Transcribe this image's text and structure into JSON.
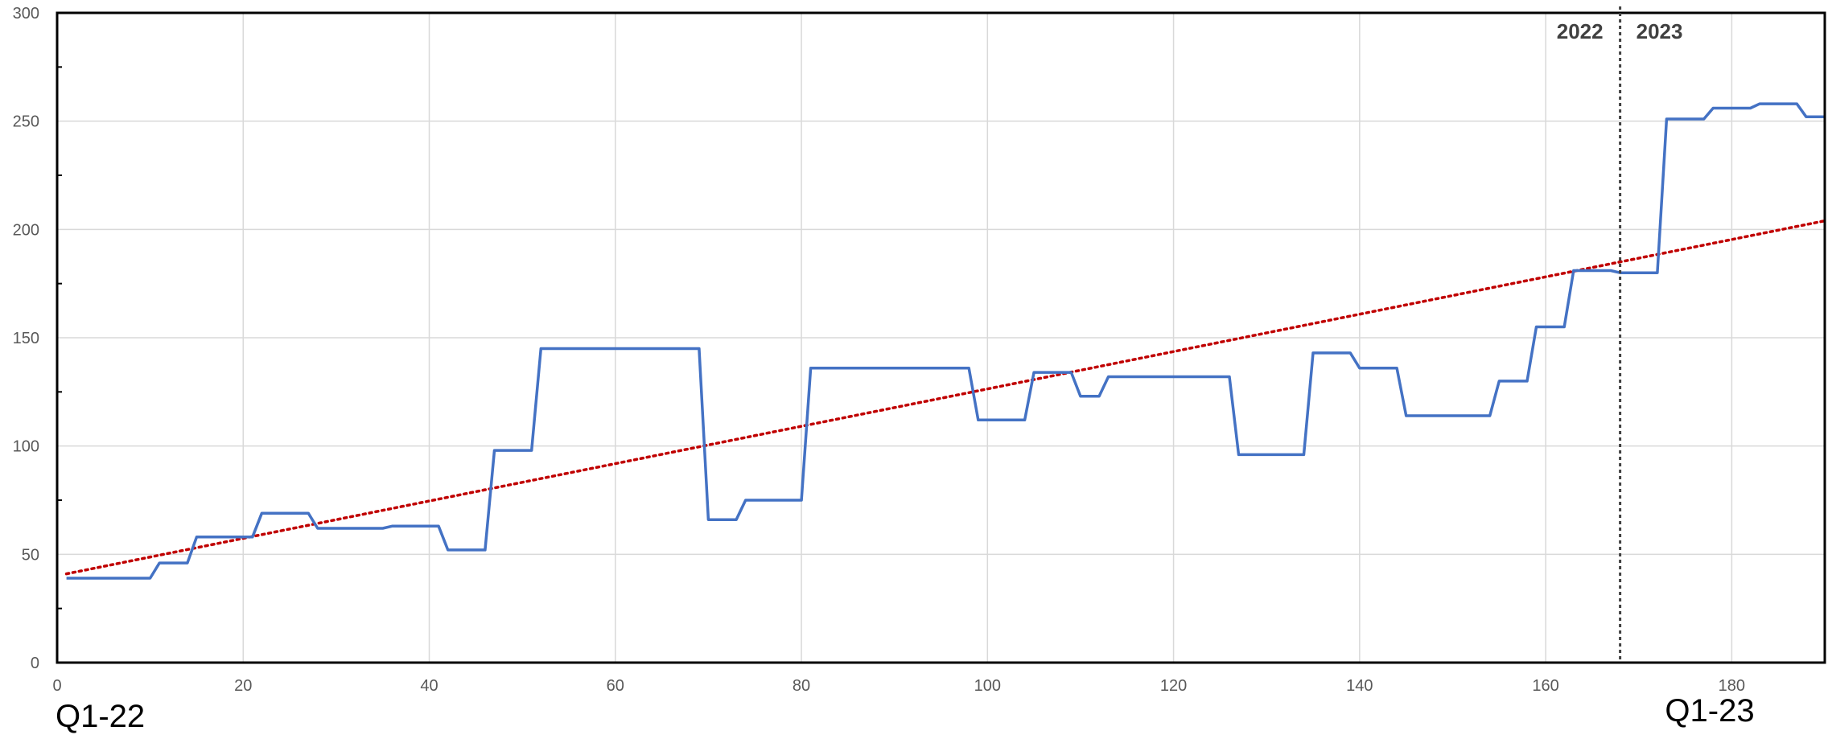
{
  "chart_data": {
    "type": "line",
    "title": "",
    "xlabel": "",
    "ylabel": "",
    "xlim": [
      0,
      190
    ],
    "ylim": [
      0,
      300
    ],
    "grid": true,
    "x_ticks": [
      0,
      20,
      40,
      60,
      80,
      100,
      120,
      140,
      160,
      180
    ],
    "y_ticks": [
      0,
      50,
      100,
      150,
      200,
      250,
      300
    ],
    "series": [
      {
        "color": "#4472C4",
        "style": "solid",
        "points": [
          [
            1,
            39
          ],
          [
            10,
            39
          ],
          [
            11,
            46
          ],
          [
            14,
            46
          ],
          [
            15,
            58
          ],
          [
            21,
            58
          ],
          [
            22,
            69
          ],
          [
            27,
            69
          ],
          [
            28,
            62
          ],
          [
            35,
            62
          ],
          [
            36,
            63
          ],
          [
            41,
            63
          ],
          [
            42,
            52
          ],
          [
            46,
            52
          ],
          [
            47,
            98
          ],
          [
            51,
            98
          ],
          [
            52,
            145
          ],
          [
            69,
            145
          ],
          [
            70,
            66
          ],
          [
            73,
            66
          ],
          [
            74,
            75
          ],
          [
            80,
            75
          ],
          [
            81,
            136
          ],
          [
            98,
            136
          ],
          [
            99,
            112
          ],
          [
            104,
            112
          ],
          [
            105,
            134
          ],
          [
            109,
            134
          ],
          [
            110,
            123
          ],
          [
            112,
            123
          ],
          [
            113,
            132
          ],
          [
            126,
            132
          ],
          [
            127,
            96
          ],
          [
            134,
            96
          ],
          [
            135,
            143
          ],
          [
            139,
            143
          ],
          [
            140,
            136
          ],
          [
            144,
            136
          ],
          [
            145,
            114
          ],
          [
            149,
            114
          ],
          [
            150,
            114
          ],
          [
            154,
            114
          ],
          [
            155,
            130
          ],
          [
            158,
            130
          ],
          [
            159,
            155
          ],
          [
            162,
            155
          ],
          [
            163,
            181
          ],
          [
            167,
            181
          ],
          [
            168,
            180
          ],
          [
            172,
            180
          ],
          [
            173,
            251
          ],
          [
            177,
            251
          ],
          [
            178,
            256
          ],
          [
            182,
            256
          ],
          [
            183,
            258
          ],
          [
            187,
            258
          ],
          [
            188,
            252
          ],
          [
            190,
            252
          ]
        ]
      },
      {
        "type": "trendline",
        "color": "#C00000",
        "style": "dotted",
        "points": [
          [
            1,
            41
          ],
          [
            190,
            204
          ]
        ]
      }
    ],
    "annotations": {
      "divider_x": 168,
      "year_left": "2022",
      "year_right": "2023",
      "corner_left": "Q1-22",
      "corner_right": "Q1-23"
    }
  }
}
